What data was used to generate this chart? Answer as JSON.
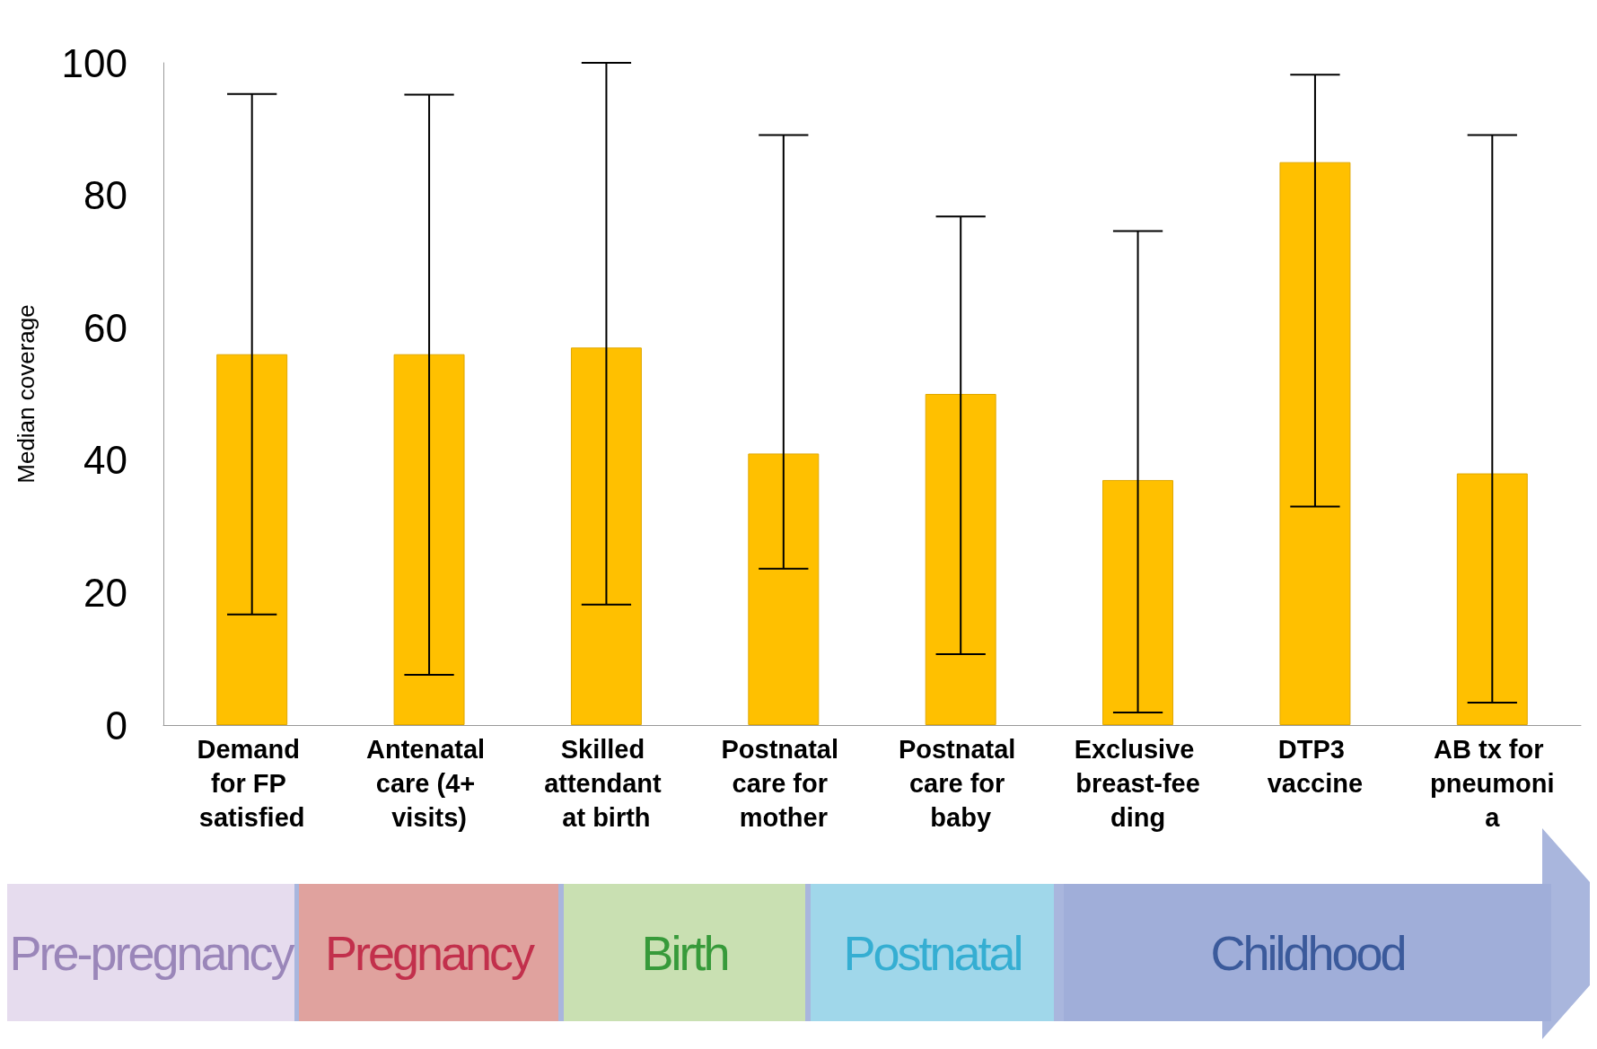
{
  "chart_data": {
    "type": "bar",
    "ylabel": "Median coverage",
    "categories": [
      "Demand for FP satisfied",
      "Antenatal care (4+ visits)",
      "Skilled attendant at birth",
      "Postnatal care for mother",
      "Postnatal care for baby",
      "Exclusive breast-feeding",
      "DTP3 vaccine",
      "AB tx for pneumonia"
    ],
    "values": [
      56,
      56,
      57,
      41,
      50,
      37,
      85,
      38
    ],
    "errors": [
      [
        16.7,
        95.3
      ],
      [
        7.6,
        95.2
      ],
      [
        18.2,
        100
      ],
      [
        23.6,
        89.1
      ],
      [
        10.7,
        76.8
      ],
      [
        1.9,
        74.6
      ],
      [
        33,
        98.2
      ],
      [
        3.4,
        89.1
      ]
    ],
    "color": "#ffc000",
    "ylim": [
      0,
      100
    ],
    "yticks": [
      0,
      20,
      40,
      60,
      80,
      100
    ],
    "grid": false,
    "annotations": [
      "Pre-pregnancy",
      "Pregnancy",
      "Birth",
      "Postnatal",
      "Childhood"
    ]
  }
}
